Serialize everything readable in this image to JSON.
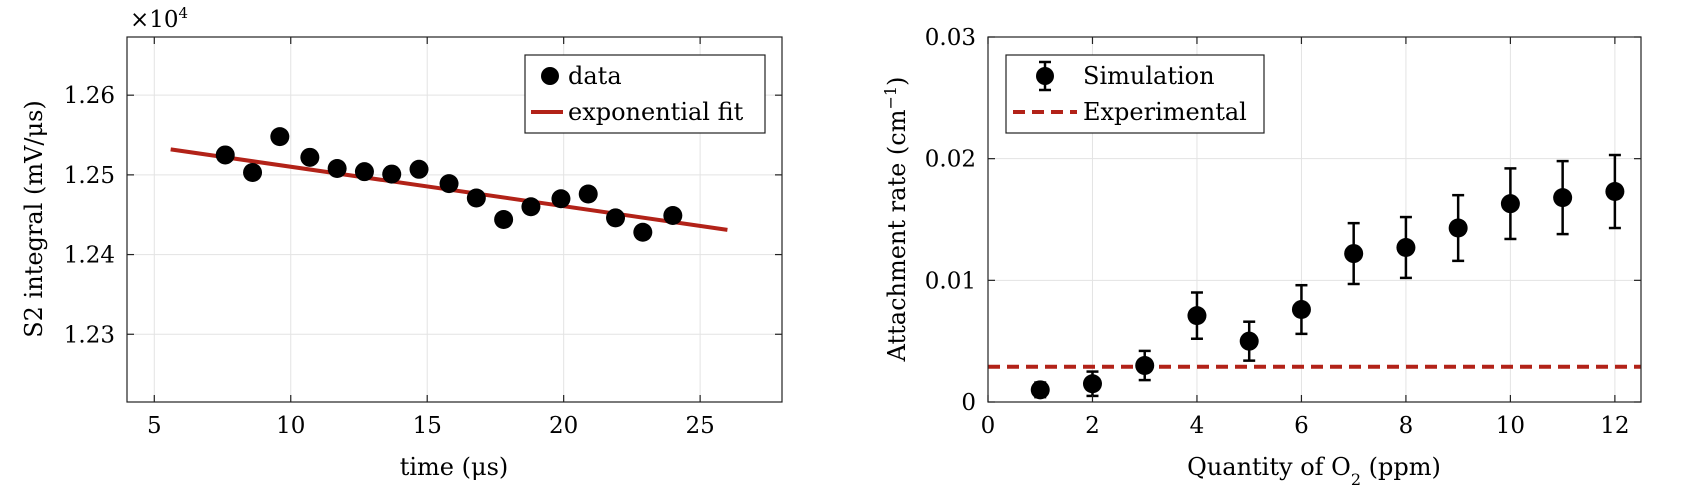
{
  "chart_data": [
    {
      "type": "scatter",
      "xlabel": "time (μs)",
      "ylabel": "S2 integral (mV/μs)",
      "exponent_label": "×10",
      "exponent_power": "4",
      "xlim": [
        4,
        28
      ],
      "ylim": [
        1.2215,
        1.2673
      ],
      "xticks": [
        5,
        10,
        15,
        20,
        25
      ],
      "xtick_labels": [
        "5",
        "10",
        "15",
        "20",
        "25"
      ],
      "yticks": [
        1.23,
        1.24,
        1.25,
        1.26
      ],
      "ytick_labels": [
        "1.23",
        "1.24",
        "1.25",
        "1.26"
      ],
      "grid": true,
      "legend_position": "top-right",
      "series": [
        {
          "name": "data",
          "marker": "circle",
          "color": "#000000",
          "x": [
            7.6,
            8.6,
            9.6,
            10.7,
            11.7,
            12.7,
            13.7,
            14.7,
            15.8,
            16.8,
            17.8,
            18.8,
            19.9,
            20.9,
            21.9,
            22.9,
            24.0
          ],
          "y": [
            1.2525,
            1.2503,
            1.2548,
            1.2522,
            1.2508,
            1.2504,
            1.2501,
            1.2507,
            1.2489,
            1.2471,
            1.2444,
            1.246,
            1.247,
            1.2476,
            1.2446,
            1.2428,
            1.2449
          ]
        },
        {
          "name": "exponential fit",
          "type": "line",
          "color": "#b22218",
          "x": [
            5.6,
            26.0
          ],
          "y": [
            1.2532,
            1.2431
          ]
        }
      ]
    },
    {
      "type": "scatter",
      "xlabel": "Quantity of O",
      "xlabel_sub": "2",
      "xlabel_tail": " (ppm)",
      "ylabel": "Attachment rate (cm",
      "ylabel_sup": "−1",
      "ylabel_tail": ")",
      "xlim": [
        0,
        12.5
      ],
      "ylim": [
        0,
        0.03
      ],
      "xticks": [
        0,
        2,
        4,
        6,
        8,
        10,
        12
      ],
      "xtick_labels": [
        "0",
        "2",
        "4",
        "6",
        "8",
        "10",
        "12"
      ],
      "yticks": [
        0,
        0.01,
        0.02,
        0.03
      ],
      "ytick_labels": [
        "0",
        "0.01",
        "0.02",
        "0.03"
      ],
      "grid": true,
      "legend_position": "top-left",
      "series": [
        {
          "name": "Simulation",
          "marker": "circle",
          "error_bars": true,
          "color": "#000000",
          "x": [
            1,
            2,
            3,
            4,
            5,
            6,
            7,
            8,
            9,
            10,
            11,
            12
          ],
          "y": [
            0.001,
            0.0015,
            0.003,
            0.0071,
            0.005,
            0.0076,
            0.0122,
            0.0127,
            0.0143,
            0.0163,
            0.0168,
            0.0173
          ],
          "err": [
            0.0006,
            0.001,
            0.0012,
            0.0019,
            0.0016,
            0.002,
            0.0025,
            0.0025,
            0.0027,
            0.0029,
            0.003,
            0.003
          ]
        },
        {
          "name": "Experimental",
          "type": "hline",
          "dashed": true,
          "color": "#b22218",
          "y": 0.0029
        }
      ]
    }
  ]
}
